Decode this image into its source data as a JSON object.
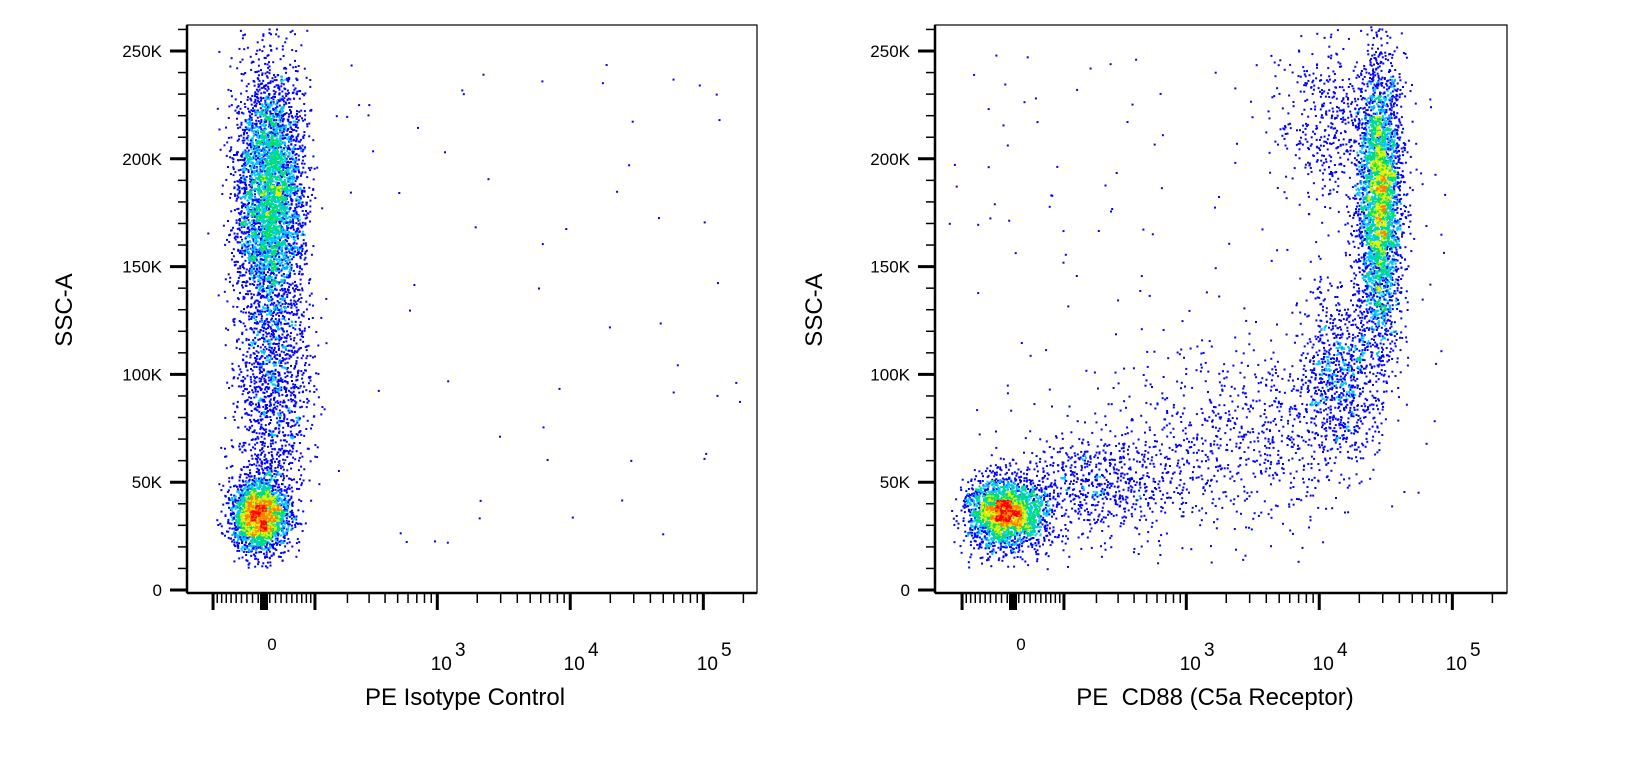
{
  "chart_data": [
    {
      "type": "scatter",
      "subtype": "pseudocolor density dot plot",
      "xlabel": "PE Isotype Control",
      "ylabel": "SSC-A",
      "x_scale": "biexponential",
      "ylim": [
        0,
        262144
      ],
      "xlim": [
        -180,
        262144
      ],
      "y_ticks": [
        {
          "value": 0,
          "label": "0"
        },
        {
          "value": 50000,
          "label": "50K"
        },
        {
          "value": 100000,
          "label": "100K"
        },
        {
          "value": 150000,
          "label": "150K"
        },
        {
          "value": 200000,
          "label": "200K"
        },
        {
          "value": 250000,
          "label": "250K"
        }
      ],
      "x_ticks": [
        {
          "value": 0,
          "base": "0",
          "exp": ""
        },
        {
          "value": 1000,
          "base": "10",
          "exp": "3"
        },
        {
          "value": 10000,
          "base": "10",
          "exp": "4"
        },
        {
          "value": 100000,
          "base": "10",
          "exp": "5"
        }
      ],
      "density_colors": [
        "#0000ff",
        "#00c8ff",
        "#00e060",
        "#e8f000",
        "#ff8000",
        "#ff0000"
      ],
      "populations": [
        {
          "x": -10,
          "x_sd": 25,
          "y": 35000,
          "y_sd": 8500,
          "n": 2600
        },
        {
          "x": 10,
          "x_sd": 30,
          "y": 185000,
          "y_sd": 28000,
          "n": 4000
        },
        {
          "x": 15,
          "x_sd": 35,
          "y": 100000,
          "y_sd": 35000,
          "n": 1500
        },
        {
          "x_min": 150,
          "x_max": 200000,
          "y_min": 20000,
          "y_max": 245000,
          "n": 60
        }
      ]
    },
    {
      "type": "scatter",
      "subtype": "pseudocolor density dot plot",
      "xlabel": "PE  CD88 (C5a Receptor)",
      "ylabel": "SSC-A",
      "x_scale": "biexponential",
      "ylim": [
        0,
        262144
      ],
      "xlim": [
        -180,
        262144
      ],
      "y_ticks": [
        {
          "value": 0,
          "label": "0"
        },
        {
          "value": 50000,
          "label": "50K"
        },
        {
          "value": 100000,
          "label": "100K"
        },
        {
          "value": 150000,
          "label": "150K"
        },
        {
          "value": 200000,
          "label": "200K"
        },
        {
          "value": 250000,
          "label": "250K"
        }
      ],
      "x_ticks": [
        {
          "value": 0,
          "base": "0",
          "exp": ""
        },
        {
          "value": 1000,
          "base": "10",
          "exp": "3"
        },
        {
          "value": 10000,
          "base": "10",
          "exp": "4"
        },
        {
          "value": 100000,
          "base": "10",
          "exp": "5"
        }
      ],
      "density_colors": [
        "#0000ff",
        "#00c8ff",
        "#00e060",
        "#e8f000",
        "#ff8000",
        "#ff0000"
      ],
      "populations": [
        {
          "x": -15,
          "x_sd": 35,
          "y": 36000,
          "y_sd": 8500,
          "n": 2600
        },
        {
          "x_log": 2.3,
          "x_log_sd": 0.35,
          "y": 48000,
          "y_sd": 13000,
          "n": 700
        },
        {
          "x_log": 3.4,
          "x_log_sd": 0.45,
          "y": 72000,
          "y_sd": 22000,
          "n": 700
        },
        {
          "x_log": 4.15,
          "x_log_sd": 0.15,
          "y": 100000,
          "y_sd": 20000,
          "n": 900
        },
        {
          "x_log": 4.45,
          "x_log_sd": 0.08,
          "y": 180000,
          "y_sd": 32000,
          "n": 3500
        },
        {
          "x_log": 4.1,
          "x_log_sd": 0.22,
          "y": 215000,
          "y_sd": 20000,
          "n": 500
        },
        {
          "x_min": -150,
          "x_max": 100000,
          "y_min": 60000,
          "y_max": 250000,
          "n": 150
        }
      ]
    }
  ]
}
